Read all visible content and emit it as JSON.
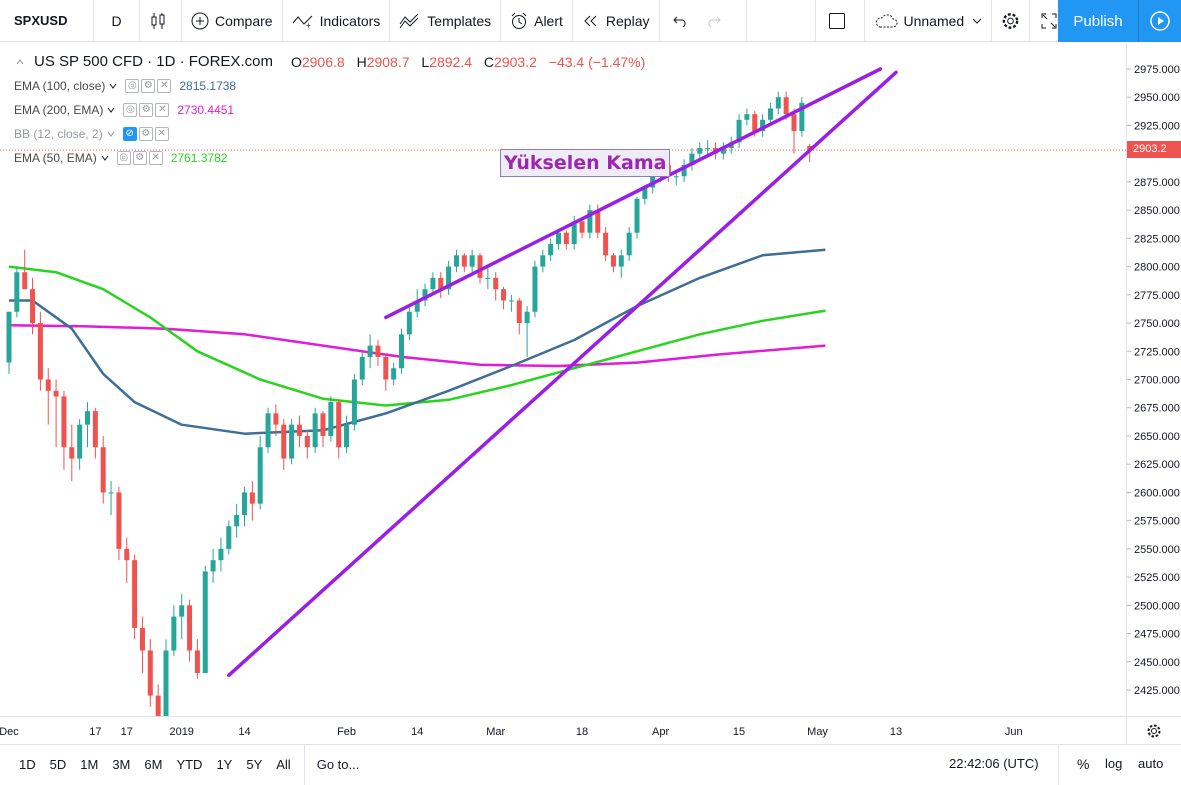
{
  "toolbar": {
    "symbol": "SPXUSD",
    "interval": "D",
    "compare": "Compare",
    "indicators": "Indicators",
    "templates": "Templates",
    "alert": "Alert",
    "replay": "Replay",
    "layout_name": "Unnamed",
    "publish": "Publish"
  },
  "legend": {
    "title": "US SP 500 CFD · 1D · FOREX.com",
    "open_k": "O",
    "open": "2906.8",
    "high_k": "H",
    "high": "2908.7",
    "low_k": "L",
    "low": "2892.4",
    "close_k": "C",
    "close": "2903.2",
    "change": "−43.4 (−1.47%)",
    "indicators": [
      {
        "label": "EMA (100, close)",
        "value": "2815.1738",
        "color": "#3d6e97"
      },
      {
        "label": "EMA (200, EMA)",
        "value": "2730.4451",
        "color": "#e21bd6"
      },
      {
        "label": "BB (12, close, 2)",
        "value": "",
        "color": "#9598a1"
      },
      {
        "label": "EMA (50, EMA)",
        "value": "2761.3782",
        "color": "#29d41f"
      }
    ]
  },
  "annotation": "Yükselen Kama",
  "last_price": "2903.2",
  "bottom": {
    "ranges": [
      "1D",
      "5D",
      "1M",
      "3M",
      "6M",
      "YTD",
      "1Y",
      "5Y",
      "All"
    ],
    "goto": "Go to...",
    "time": "22:42:06 (UTC)",
    "pct": "%",
    "log": "log",
    "auto": "auto"
  },
  "chart_data": {
    "type": "candlestick",
    "y_ticks": [
      2425,
      2450,
      2475,
      2500,
      2525,
      2550,
      2575,
      2600,
      2625,
      2650,
      2675,
      2700,
      2725,
      2750,
      2775,
      2800,
      2825,
      2850,
      2875,
      2900,
      2925,
      2950,
      2975
    ],
    "x_tick_labels": [
      {
        "label": "Dec",
        "idx": 0
      },
      {
        "label": "17",
        "idx": 11
      },
      {
        "label": "17",
        "idx": 15
      },
      {
        "label": "2019",
        "idx": 22
      },
      {
        "label": "14",
        "idx": 30
      },
      {
        "label": "Feb",
        "idx": 43
      },
      {
        "label": "14",
        "idx": 52
      },
      {
        "label": "Mar",
        "idx": 62
      },
      {
        "label": "18",
        "idx": 73
      },
      {
        "label": "Apr",
        "idx": 83
      },
      {
        "label": "15",
        "idx": 93
      },
      {
        "label": "May",
        "idx": 103
      },
      {
        "label": "13",
        "idx": 113
      },
      {
        "label": "Jun",
        "idx": 128
      }
    ],
    "ylim": [
      2400,
      2995
    ],
    "colors": {
      "up": "#26a69a",
      "down": "#ef5350",
      "ema100": "#3d6e97",
      "ema200": "#e21bd6",
      "ema50": "#29d41f",
      "wedge": "#9b1ee6"
    },
    "closes": [
      2760,
      2795,
      2805,
      2750,
      2700,
      2690,
      2685,
      2640,
      2630,
      2660,
      2672,
      2640,
      2600,
      2600,
      2550,
      2540,
      2480,
      2460,
      2420,
      2400,
      2460,
      2490,
      2500,
      2460,
      2440,
      2530,
      2540,
      2550,
      2570,
      2580,
      2600,
      2590,
      2640,
      2670,
      2660,
      2630,
      2660,
      2650,
      2640,
      2670,
      2650,
      2680,
      2640,
      2660,
      2700,
      2720,
      2730,
      2720,
      2700,
      2710,
      2740,
      2760,
      2770,
      2780,
      2790,
      2780,
      2800,
      2810,
      2800,
      2810,
      2790,
      2790,
      2780,
      2770,
      2770,
      2750,
      2760,
      2800,
      2810,
      2820,
      2830,
      2820,
      2840,
      2830,
      2850,
      2830,
      2810,
      2800,
      2810,
      2830,
      2860,
      2870,
      2880,
      2890,
      2880,
      2880,
      2890,
      2900,
      2905,
      2905,
      2900,
      2905,
      2910,
      2930,
      2935,
      2920,
      2930,
      2940,
      2950,
      2935,
      2920,
      2945,
      2903
    ],
    "candles": [
      [
        2715,
        2760,
        2705,
        2760
      ],
      [
        2760,
        2800,
        2755,
        2795
      ],
      [
        2795,
        2815,
        2780,
        2780
      ],
      [
        2780,
        2790,
        2740,
        2750
      ],
      [
        2750,
        2760,
        2690,
        2700
      ],
      [
        2700,
        2710,
        2660,
        2690
      ],
      [
        2690,
        2700,
        2640,
        2685
      ],
      [
        2685,
        2690,
        2620,
        2640
      ],
      [
        2640,
        2660,
        2610,
        2630
      ],
      [
        2630,
        2665,
        2620,
        2660
      ],
      [
        2660,
        2680,
        2640,
        2672
      ],
      [
        2672,
        2675,
        2630,
        2640
      ],
      [
        2640,
        2650,
        2590,
        2600
      ],
      [
        2600,
        2610,
        2580,
        2600
      ],
      [
        2600,
        2605,
        2540,
        2550
      ],
      [
        2550,
        2560,
        2520,
        2540
      ],
      [
        2540,
        2545,
        2470,
        2480
      ],
      [
        2480,
        2490,
        2440,
        2460
      ],
      [
        2460,
        2470,
        2410,
        2420
      ],
      [
        2420,
        2430,
        2390,
        2400
      ],
      [
        2400,
        2470,
        2395,
        2460
      ],
      [
        2460,
        2500,
        2455,
        2490
      ],
      [
        2490,
        2510,
        2470,
        2500
      ],
      [
        2500,
        2505,
        2450,
        2460
      ],
      [
        2460,
        2470,
        2435,
        2440
      ],
      [
        2440,
        2535,
        2440,
        2530
      ],
      [
        2530,
        2550,
        2520,
        2540
      ],
      [
        2540,
        2560,
        2530,
        2550
      ],
      [
        2550,
        2575,
        2545,
        2570
      ],
      [
        2570,
        2590,
        2560,
        2580
      ],
      [
        2580,
        2605,
        2570,
        2600
      ],
      [
        2600,
        2610,
        2575,
        2590
      ],
      [
        2590,
        2650,
        2585,
        2640
      ],
      [
        2640,
        2675,
        2635,
        2670
      ],
      [
        2670,
        2678,
        2650,
        2660
      ],
      [
        2660,
        2665,
        2620,
        2630
      ],
      [
        2630,
        2665,
        2625,
        2660
      ],
      [
        2660,
        2668,
        2640,
        2650
      ],
      [
        2650,
        2655,
        2630,
        2640
      ],
      [
        2640,
        2675,
        2635,
        2670
      ],
      [
        2670,
        2672,
        2640,
        2650
      ],
      [
        2650,
        2685,
        2645,
        2680
      ],
      [
        2680,
        2682,
        2630,
        2640
      ],
      [
        2640,
        2668,
        2635,
        2660
      ],
      [
        2660,
        2705,
        2655,
        2700
      ],
      [
        2700,
        2725,
        2695,
        2720
      ],
      [
        2720,
        2740,
        2710,
        2730
      ],
      [
        2730,
        2735,
        2712,
        2720
      ],
      [
        2720,
        2722,
        2690,
        2700
      ],
      [
        2700,
        2715,
        2695,
        2710
      ],
      [
        2710,
        2745,
        2705,
        2740
      ],
      [
        2740,
        2765,
        2735,
        2760
      ],
      [
        2760,
        2780,
        2755,
        2770
      ],
      [
        2770,
        2785,
        2765,
        2780
      ],
      [
        2780,
        2795,
        2775,
        2790
      ],
      [
        2790,
        2795,
        2772,
        2780
      ],
      [
        2780,
        2805,
        2775,
        2800
      ],
      [
        2800,
        2815,
        2795,
        2810
      ],
      [
        2810,
        2812,
        2795,
        2800
      ],
      [
        2800,
        2815,
        2795,
        2810
      ],
      [
        2810,
        2812,
        2785,
        2790
      ],
      [
        2790,
        2800,
        2780,
        2790
      ],
      [
        2790,
        2795,
        2770,
        2780
      ],
      [
        2780,
        2782,
        2762,
        2770
      ],
      [
        2770,
        2775,
        2760,
        2770
      ],
      [
        2770,
        2772,
        2740,
        2750
      ],
      [
        2750,
        2765,
        2720,
        2760
      ],
      [
        2760,
        2805,
        2755,
        2800
      ],
      [
        2800,
        2815,
        2795,
        2810
      ],
      [
        2810,
        2825,
        2805,
        2820
      ],
      [
        2820,
        2832,
        2815,
        2830
      ],
      [
        2830,
        2832,
        2815,
        2820
      ],
      [
        2820,
        2845,
        2815,
        2840
      ],
      [
        2840,
        2842,
        2825,
        2830
      ],
      [
        2830,
        2855,
        2825,
        2850
      ],
      [
        2850,
        2855,
        2825,
        2830
      ],
      [
        2830,
        2835,
        2805,
        2810
      ],
      [
        2810,
        2812,
        2795,
        2800
      ],
      [
        2800,
        2815,
        2790,
        2810
      ],
      [
        2810,
        2835,
        2805,
        2830
      ],
      [
        2830,
        2862,
        2825,
        2860
      ],
      [
        2860,
        2872,
        2855,
        2870
      ],
      [
        2870,
        2882,
        2865,
        2880
      ],
      [
        2880,
        2892,
        2875,
        2890
      ],
      [
        2890,
        2893,
        2875,
        2880
      ],
      [
        2880,
        2885,
        2872,
        2880
      ],
      [
        2880,
        2895,
        2875,
        2890
      ],
      [
        2890,
        2905,
        2885,
        2900
      ],
      [
        2900,
        2910,
        2895,
        2905
      ],
      [
        2905,
        2912,
        2898,
        2905
      ],
      [
        2905,
        2910,
        2895,
        2900
      ],
      [
        2900,
        2910,
        2895,
        2905
      ],
      [
        2905,
        2915,
        2900,
        2910
      ],
      [
        2910,
        2935,
        2905,
        2930
      ],
      [
        2930,
        2940,
        2925,
        2935
      ],
      [
        2935,
        2938,
        2915,
        2920
      ],
      [
        2920,
        2935,
        2915,
        2930
      ],
      [
        2930,
        2945,
        2925,
        2940
      ],
      [
        2940,
        2955,
        2935,
        2950
      ],
      [
        2950,
        2955,
        2930,
        2935
      ],
      [
        2935,
        2940,
        2900,
        2920
      ],
      [
        2920,
        2950,
        2915,
        2945
      ],
      [
        2906.8,
        2908.7,
        2892.4,
        2903.2
      ]
    ],
    "ema100": [
      [
        0,
        2770
      ],
      [
        3,
        2770
      ],
      [
        8,
        2745
      ],
      [
        12,
        2705
      ],
      [
        16,
        2680
      ],
      [
        22,
        2660
      ],
      [
        30,
        2652
      ],
      [
        40,
        2655
      ],
      [
        48,
        2670
      ],
      [
        56,
        2690
      ],
      [
        64,
        2712
      ],
      [
        72,
        2735
      ],
      [
        80,
        2765
      ],
      [
        88,
        2790
      ],
      [
        96,
        2810
      ],
      [
        104,
        2815
      ]
    ],
    "ema200": [
      [
        0,
        2748
      ],
      [
        10,
        2747
      ],
      [
        20,
        2745
      ],
      [
        30,
        2740
      ],
      [
        40,
        2730
      ],
      [
        50,
        2720
      ],
      [
        60,
        2713
      ],
      [
        70,
        2712
      ],
      [
        80,
        2715
      ],
      [
        90,
        2722
      ],
      [
        104,
        2730
      ]
    ],
    "ema50": [
      [
        0,
        2800
      ],
      [
        6,
        2795
      ],
      [
        12,
        2780
      ],
      [
        18,
        2755
      ],
      [
        24,
        2725
      ],
      [
        32,
        2700
      ],
      [
        40,
        2683
      ],
      [
        48,
        2677
      ],
      [
        56,
        2682
      ],
      [
        64,
        2695
      ],
      [
        72,
        2710
      ],
      [
        80,
        2725
      ],
      [
        88,
        2740
      ],
      [
        96,
        2752
      ],
      [
        104,
        2761
      ]
    ],
    "wedge_lines": [
      {
        "from": [
          48,
          2755
        ],
        "to": [
          111,
          2975
        ]
      },
      {
        "from": [
          28,
          2438
        ],
        "to": [
          113,
          2972
        ]
      }
    ]
  }
}
